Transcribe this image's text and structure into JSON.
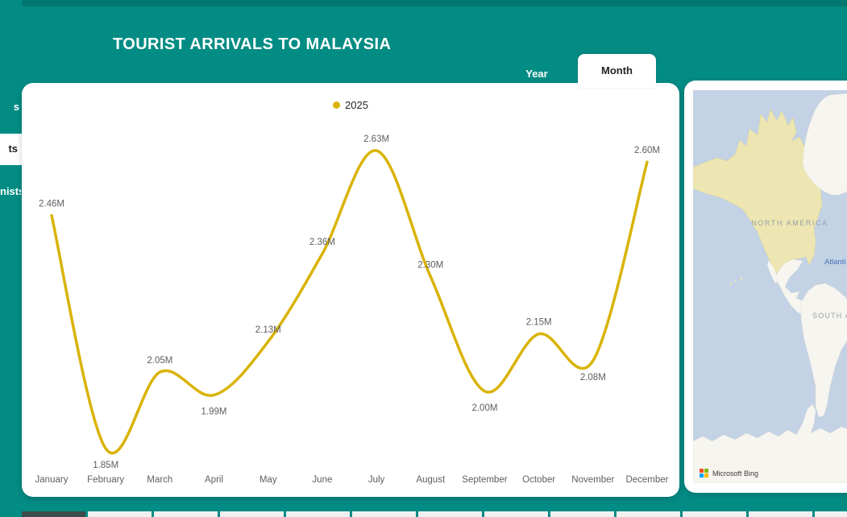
{
  "header": {
    "title": "TOURIST ARRIVALS TO MALAYSIA",
    "toggle": {
      "year_label": "Year",
      "month_label": "Month",
      "selected": "Month"
    }
  },
  "sidebar": {
    "items": [
      {
        "visible_text": "s",
        "selected": false
      },
      {
        "visible_text": "ts",
        "selected": true
      },
      {
        "visible_text": "nists",
        "selected": false
      }
    ]
  },
  "chart_data": {
    "type": "line",
    "title": "",
    "xlabel": "",
    "ylabel": "",
    "grid": false,
    "legend": {
      "position": "top-center",
      "entries": [
        "2025"
      ]
    },
    "categories": [
      "January",
      "February",
      "March",
      "April",
      "May",
      "June",
      "July",
      "August",
      "September",
      "October",
      "November",
      "December"
    ],
    "series": [
      {
        "name": "2025",
        "color": "#D9B307",
        "values": [
          2.46,
          1.85,
          2.05,
          1.99,
          2.13,
          2.36,
          2.63,
          2.3,
          2.0,
          2.15,
          2.08,
          2.6
        ],
        "data_labels": [
          "2.46M",
          "1.85M",
          "2.05M",
          "1.99M",
          "2.13M",
          "2.36M",
          "2.63M",
          "2.30M",
          "2.00M",
          "2.15M",
          "2.08M",
          "2.60M"
        ]
      }
    ],
    "y_range_implied": [
      1.85,
      2.63
    ]
  },
  "map": {
    "labels": {
      "north_america": "NORTH AMERICA",
      "atlantic_visible": "Atlanti",
      "south_america_visible": "SOUTH A"
    },
    "attribution": "Microsoft Bing",
    "colors": {
      "water": "#C3D2E4",
      "land_highlighted": "#EDE6B2",
      "land_plain": "#F7F5F0",
      "region_label": "#9AA0A6",
      "ocean_label": "#4A72B8"
    }
  },
  "bottom_strip": {
    "cell_count": 13,
    "selected_index": 0
  },
  "colors": {
    "background_teal": "#038C84",
    "card_white": "#FFFFFF",
    "series_gold": "#D9B307",
    "chart_text": "#605E5C",
    "ms_logo": [
      "#F25022",
      "#7FBA00",
      "#00A4EF",
      "#FFB900"
    ]
  }
}
